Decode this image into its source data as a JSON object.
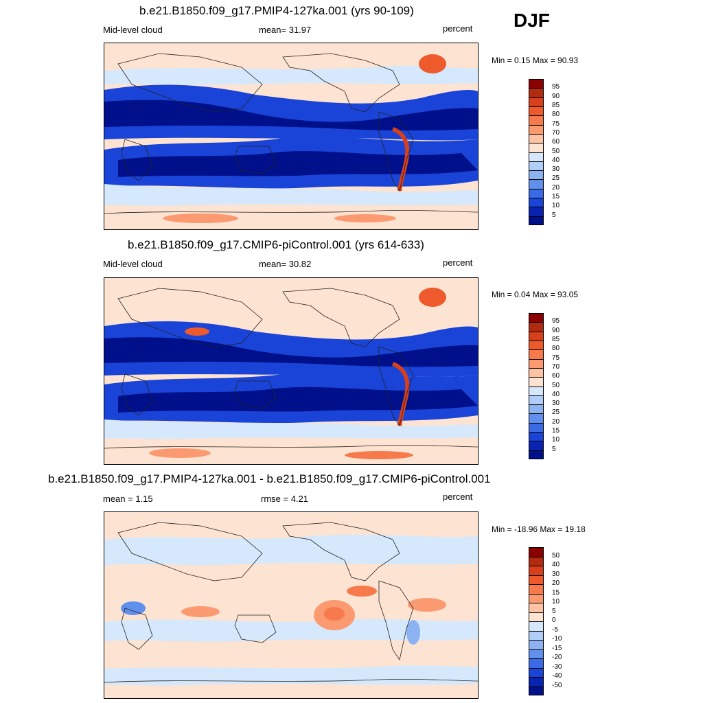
{
  "season": "DJF",
  "panels": [
    {
      "title": "b.e21.B1850.f09_g17.PMIP4-127ka.001 (yrs 90-109)",
      "left_label": "Mid-level cloud",
      "center_label": "mean=  31.97",
      "right_label": "percent",
      "minmax": "Min =   0.15 Max =  90.93",
      "colorbar_labels": [
        "95",
        "90",
        "85",
        "80",
        "75",
        "70",
        "60",
        "50",
        "40",
        "30",
        "25",
        "20",
        "15",
        "10",
        "5"
      ]
    },
    {
      "title": "b.e21.B1850.f09_g17.CMIP6-piControl.001 (yrs 614-633)",
      "left_label": "Mid-level cloud",
      "center_label": "mean=  30.82",
      "right_label": "percent",
      "minmax": "Min =   0.04 Max =  93.05",
      "colorbar_labels": [
        "95",
        "90",
        "85",
        "80",
        "75",
        "70",
        "60",
        "50",
        "40",
        "30",
        "25",
        "20",
        "15",
        "10",
        "5"
      ]
    },
    {
      "title": "b.e21.B1850.f09_g17.PMIP4-127ka.001 - b.e21.B1850.f09_g17.CMIP6-piControl.001",
      "left_label": "mean =   1.15",
      "center_label": "rmse =   4.21",
      "right_label": "percent",
      "minmax": "Min = -18.96 Max =  19.18",
      "colorbar_labels": [
        "50",
        "40",
        "30",
        "20",
        "15",
        "10",
        "5",
        "0",
        "-5",
        "-10",
        "-15",
        "-20",
        "-30",
        "-40",
        "-50"
      ]
    }
  ],
  "colors": {
    "abs_scale": [
      "#8b0000",
      "#b22a10",
      "#d8401c",
      "#ee5a2c",
      "#f77a4c",
      "#fb9a70",
      "#fdc3a4",
      "#fde3d2",
      "#d6e8fb",
      "#b0cef7",
      "#8cb2f2",
      "#6090ec",
      "#3a6ae6",
      "#1a44d8",
      "#0a22b0",
      "#00108a"
    ],
    "diff_scale": [
      "#8b0000",
      "#b22a10",
      "#d8401c",
      "#ee5a2c",
      "#f77a4c",
      "#fb9a70",
      "#fdc3a4",
      "#fde3d2",
      "#d6e8fb",
      "#b0cef7",
      "#8cb2f2",
      "#6090ec",
      "#3a6ae6",
      "#1a44d8",
      "#0a22b0",
      "#00108a"
    ]
  },
  "chart_data": [
    {
      "type": "heatmap",
      "title": "b.e21.B1850.f09_g17.PMIP4-127ka.001 (yrs 90-109)",
      "variable": "Mid-level cloud",
      "units": "percent",
      "mean": 31.97,
      "min": 0.15,
      "max": 90.93,
      "levels": [
        5,
        10,
        15,
        20,
        25,
        30,
        40,
        50,
        60,
        70,
        75,
        80,
        85,
        90,
        95
      ]
    },
    {
      "type": "heatmap",
      "title": "b.e21.B1850.f09_g17.CMIP6-piControl.001 (yrs 614-633)",
      "variable": "Mid-level cloud",
      "units": "percent",
      "mean": 30.82,
      "min": 0.04,
      "max": 93.05,
      "levels": [
        5,
        10,
        15,
        20,
        25,
        30,
        40,
        50,
        60,
        70,
        75,
        80,
        85,
        90,
        95
      ]
    },
    {
      "type": "heatmap",
      "title": "b.e21.B1850.f09_g17.PMIP4-127ka.001 - b.e21.B1850.f09_g17.CMIP6-piControl.001",
      "units": "percent",
      "mean": 1.15,
      "rmse": 4.21,
      "min": -18.96,
      "max": 19.18,
      "levels": [
        -50,
        -40,
        -30,
        -20,
        -15,
        -10,
        -5,
        0,
        5,
        10,
        15,
        20,
        30,
        40,
        50
      ]
    }
  ]
}
